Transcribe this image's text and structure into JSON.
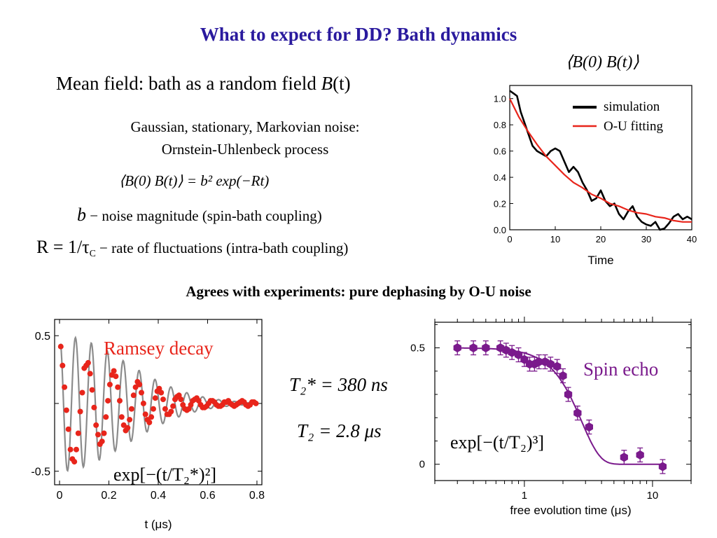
{
  "slide": {
    "title": "What to expect for DD? Bath dynamics",
    "mean_field_prefix": "Mean field: bath as a random field ",
    "mean_field_sym": "B",
    "mean_field_arg": "(t)",
    "noise_line1": "Gaussian, stationary, Markovian noise:",
    "noise_line2": "Ornstein-Uhlenbeck process",
    "corr_eq": "⟨B(0) B(t)⟩ = b² exp(−Rt)",
    "b_sym": "b",
    "b_desc": " − noise magnitude (spin-bath coupling)",
    "r_sym": "R = 1/τ",
    "r_sub": "C",
    "r_desc": " − rate of fluctuations (intra-bath coupling)",
    "agree": "Agrees with experiments: pure dephasing by O-U noise",
    "t2star_label": "T₂* = 380 ns",
    "t2_label": "T₂ = 2.8 μs"
  },
  "colors": {
    "title": "#2a1a9e",
    "red": "#e8251b",
    "purple": "#7a1a8c"
  },
  "chart_data": [
    {
      "type": "line",
      "title": "⟨B(0) B(t)⟩",
      "xlabel": "Time",
      "ylabel": "",
      "xlim": [
        0,
        40
      ],
      "ylim": [
        0,
        1.1
      ],
      "xticks": [
        "0",
        "10",
        "20",
        "30",
        "40"
      ],
      "yticks": [
        "0.0",
        "0.2",
        "0.4",
        "0.6",
        "0.8",
        "1.0"
      ],
      "legend_position": "top-right",
      "series": [
        {
          "name": "simulation",
          "color": "#000000",
          "x": [
            0,
            0.8,
            1.6,
            2.4,
            3.2,
            4,
            5,
            6,
            7,
            8,
            9,
            10,
            11,
            12,
            13,
            14,
            15,
            16,
            17,
            18,
            19,
            20,
            21,
            22,
            23,
            24,
            25,
            26,
            27,
            28,
            29,
            30,
            31,
            32,
            33,
            34,
            35,
            36,
            37,
            38,
            39,
            40
          ],
          "y": [
            1.06,
            1.04,
            1.02,
            0.9,
            0.82,
            0.74,
            0.64,
            0.6,
            0.58,
            0.56,
            0.6,
            0.62,
            0.6,
            0.52,
            0.44,
            0.48,
            0.44,
            0.36,
            0.3,
            0.22,
            0.24,
            0.3,
            0.22,
            0.18,
            0.2,
            0.12,
            0.08,
            0.14,
            0.18,
            0.1,
            0.06,
            0.04,
            0.03,
            0.06,
            0.0,
            0.01,
            0.05,
            0.1,
            0.12,
            0.08,
            0.1,
            0.08
          ]
        },
        {
          "name": "O-U fitting",
          "color": "#e8251b",
          "x": [
            0,
            2,
            4,
            6,
            8,
            10,
            12,
            14,
            16,
            18,
            20,
            22,
            24,
            26,
            28,
            30,
            32,
            34,
            36,
            38,
            40
          ],
          "y": [
            1.0,
            0.86,
            0.75,
            0.65,
            0.56,
            0.49,
            0.42,
            0.36,
            0.32,
            0.27,
            0.24,
            0.2,
            0.18,
            0.15,
            0.13,
            0.12,
            0.1,
            0.09,
            0.07,
            0.06,
            0.06
          ]
        }
      ]
    },
    {
      "type": "scatter",
      "title": "Ramsey decay",
      "xlabel": "t (μs)",
      "ylabel": "",
      "xlim": [
        -0.02,
        0.82
      ],
      "ylim": [
        -0.6,
        0.62
      ],
      "xticks": [
        "0",
        "0.2",
        "0.4",
        "0.6",
        "0.8"
      ],
      "yticks": [
        "0.5",
        "-0.5"
      ],
      "fit_formula": "exp[−(t/T₂*)²]",
      "T2star_us": 0.38,
      "frequency_per_us": 15.5,
      "amplitude": 0.5,
      "x": [
        0.005,
        0.012,
        0.02,
        0.028,
        0.036,
        0.044,
        0.052,
        0.06,
        0.068,
        0.076,
        0.084,
        0.092,
        0.1,
        0.108,
        0.116,
        0.124,
        0.132,
        0.14,
        0.148,
        0.156,
        0.164,
        0.172,
        0.18,
        0.188,
        0.196,
        0.204,
        0.212,
        0.22,
        0.228,
        0.236,
        0.244,
        0.252,
        0.26,
        0.268,
        0.276,
        0.284,
        0.292,
        0.3,
        0.308,
        0.316,
        0.324,
        0.332,
        0.34,
        0.348,
        0.356,
        0.364,
        0.372,
        0.38,
        0.388,
        0.396,
        0.404,
        0.412,
        0.42,
        0.428,
        0.436,
        0.444,
        0.452,
        0.46,
        0.468,
        0.476,
        0.484,
        0.492,
        0.5,
        0.508,
        0.516,
        0.524,
        0.532,
        0.54,
        0.548,
        0.556,
        0.564,
        0.572,
        0.58,
        0.588,
        0.596,
        0.604,
        0.612,
        0.62,
        0.628,
        0.636,
        0.644,
        0.652,
        0.66,
        0.668,
        0.676,
        0.684,
        0.692,
        0.7,
        0.708,
        0.716,
        0.724,
        0.732,
        0.74,
        0.748,
        0.756,
        0.764,
        0.772,
        0.78,
        0.788,
        0.796
      ],
      "y": [
        0.42,
        0.28,
        0.12,
        -0.05,
        -0.19,
        -0.34,
        -0.41,
        -0.43,
        -0.34,
        -0.22,
        -0.06,
        0.08,
        0.26,
        0.28,
        0.3,
        0.22,
        0.1,
        -0.03,
        -0.16,
        -0.23,
        -0.3,
        -0.28,
        -0.22,
        -0.1,
        0.02,
        0.14,
        0.21,
        0.24,
        0.2,
        0.12,
        0.02,
        -0.1,
        -0.16,
        -0.2,
        -0.18,
        -0.12,
        -0.04,
        0.06,
        0.12,
        0.16,
        0.14,
        0.08,
        0.0,
        -0.08,
        -0.12,
        -0.14,
        -0.1,
        -0.04,
        0.04,
        0.09,
        0.11,
        0.08,
        0.03,
        -0.04,
        -0.08,
        -0.08,
        -0.06,
        -0.02,
        0.03,
        0.05,
        0.06,
        0.03,
        -0.01,
        -0.04,
        -0.05,
        -0.04,
        -0.01,
        0.02,
        0.03,
        0.04,
        0.02,
        -0.01,
        -0.03,
        -0.03,
        -0.02,
        0.0,
        0.02,
        0.02,
        0.01,
        -0.01,
        -0.02,
        -0.02,
        -0.01,
        0.01,
        0.01,
        0.02,
        0.0,
        -0.01,
        -0.02,
        -0.01,
        0.0,
        0.01,
        0.02,
        0.01,
        -0.01,
        -0.02,
        -0.01,
        0.01,
        0.01,
        0.0
      ]
    },
    {
      "type": "scatter",
      "title": "Spin echo",
      "xlabel": "free evolution time (μs)",
      "ylabel": "",
      "xscale": "log",
      "xlim": [
        0.2,
        20
      ],
      "ylim": [
        -0.07,
        0.61
      ],
      "xticks": [
        "1",
        "10"
      ],
      "yticks": [
        "0.5",
        "0"
      ],
      "fit_formula": "exp[−(t/T₂)³]",
      "T2_us": 2.8,
      "amplitude": 0.5,
      "x": [
        0.3,
        0.4,
        0.5,
        0.65,
        0.72,
        0.8,
        0.9,
        1.0,
        1.1,
        1.2,
        1.3,
        1.45,
        1.6,
        1.8,
        2.0,
        2.2,
        2.6,
        3.2,
        6.0,
        8.0,
        12.0
      ],
      "y": [
        0.5,
        0.5,
        0.5,
        0.5,
        0.49,
        0.48,
        0.47,
        0.45,
        0.43,
        0.43,
        0.44,
        0.44,
        0.43,
        0.42,
        0.38,
        0.3,
        0.22,
        0.16,
        0.03,
        0.04,
        -0.01
      ],
      "error": 0.03
    }
  ]
}
